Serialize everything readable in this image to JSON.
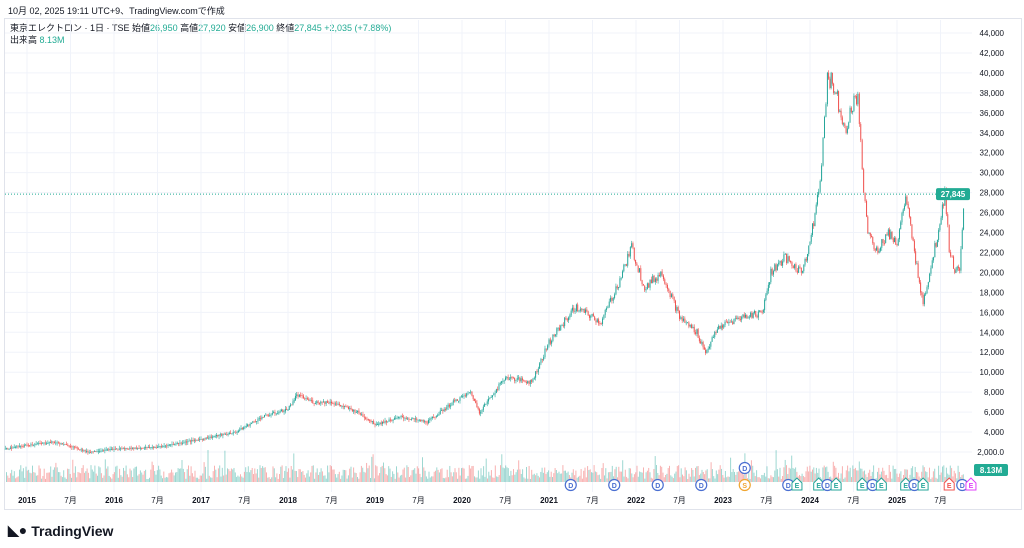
{
  "header": {
    "created": "10月 02, 2025 19:11 UTC+9、TradingView.comで作成"
  },
  "legend": {
    "symbol": "東京エレクトロン · 1日 · TSE",
    "open_label": "始値",
    "open": "26,950",
    "high_label": "高値",
    "high": "27,920",
    "low_label": "安値",
    "low": "26,900",
    "close_label": "終値",
    "close": "27,845",
    "change": "+2,035 (+7.88%)",
    "volume_label": "出来高",
    "volume": "8.13M"
  },
  "brand": {
    "name": "TradingView"
  },
  "colors": {
    "up": "#26a69a",
    "down": "#ef5350",
    "last": "#22ab94",
    "dividend": "#4a6fd1",
    "earnings": "#26a69a",
    "split": "#f0a530"
  },
  "chart_data": {
    "type": "line",
    "title": "東京エレクトロン · 1日 · TSE",
    "ylim": [
      0,
      45000
    ],
    "y_ticks": [
      "44,000",
      "42,000",
      "40,000",
      "38,000",
      "36,000",
      "34,000",
      "32,000",
      "30,000",
      "28,000",
      "26,000",
      "24,000",
      "22,000",
      "20,000",
      "18,000",
      "16,000",
      "14,000",
      "12,000",
      "10,000",
      "8,000",
      "6,000",
      "4,000",
      "2,000.0"
    ],
    "y_tick_values": [
      44000,
      42000,
      40000,
      38000,
      36000,
      34000,
      32000,
      30000,
      28000,
      26000,
      24000,
      22000,
      20000,
      18000,
      16000,
      14000,
      12000,
      10000,
      8000,
      6000,
      4000,
      2000
    ],
    "x_ticks": [
      {
        "t": 2015,
        "label": "2015"
      },
      {
        "t": 2015.5,
        "label": "7月"
      },
      {
        "t": 2016,
        "label": "2016"
      },
      {
        "t": 2016.5,
        "label": "7月"
      },
      {
        "t": 2017,
        "label": "2017"
      },
      {
        "t": 2017.5,
        "label": "7月"
      },
      {
        "t": 2018,
        "label": "2018"
      },
      {
        "t": 2018.5,
        "label": "7月"
      },
      {
        "t": 2019,
        "label": "2019"
      },
      {
        "t": 2019.5,
        "label": "7月"
      },
      {
        "t": 2020,
        "label": "2020"
      },
      {
        "t": 2020.5,
        "label": "7月"
      },
      {
        "t": 2021,
        "label": "2021"
      },
      {
        "t": 2021.5,
        "label": "7月"
      },
      {
        "t": 2022,
        "label": "2022"
      },
      {
        "t": 2022.5,
        "label": "7月"
      },
      {
        "t": 2023,
        "label": "2023"
      },
      {
        "t": 2023.5,
        "label": "7月"
      },
      {
        "t": 2024,
        "label": "2024"
      },
      {
        "t": 2024.5,
        "label": "7月"
      },
      {
        "t": 2025,
        "label": "2025"
      },
      {
        "t": 2025.5,
        "label": "7月"
      }
    ],
    "last_price": 27845,
    "last_price_label": "27,845",
    "last_volume_label": "8.13M",
    "series": [
      {
        "name": "close",
        "points": [
          [
            2014.75,
            2300
          ],
          [
            2015.0,
            2700
          ],
          [
            2015.3,
            3000
          ],
          [
            2015.5,
            2600
          ],
          [
            2015.7,
            2000
          ],
          [
            2016.0,
            2300
          ],
          [
            2016.5,
            2500
          ],
          [
            2017.0,
            3300
          ],
          [
            2017.4,
            4000
          ],
          [
            2017.7,
            5500
          ],
          [
            2018.0,
            6300
          ],
          [
            2018.1,
            7700
          ],
          [
            2018.3,
            7000
          ],
          [
            2018.5,
            7000
          ],
          [
            2018.8,
            6000
          ],
          [
            2019.0,
            4800
          ],
          [
            2019.1,
            5000
          ],
          [
            2019.3,
            5500
          ],
          [
            2019.6,
            5000
          ],
          [
            2019.9,
            7000
          ],
          [
            2020.1,
            8000
          ],
          [
            2020.2,
            6000
          ],
          [
            2020.5,
            9500
          ],
          [
            2020.8,
            9000
          ],
          [
            2021.0,
            13000
          ],
          [
            2021.3,
            16500
          ],
          [
            2021.6,
            15000
          ],
          [
            2021.8,
            19000
          ],
          [
            2021.95,
            22500
          ],
          [
            2022.1,
            18500
          ],
          [
            2022.3,
            20000
          ],
          [
            2022.5,
            15500
          ],
          [
            2022.7,
            14000
          ],
          [
            2022.8,
            12000
          ],
          [
            2022.95,
            14500
          ],
          [
            2023.2,
            15500
          ],
          [
            2023.45,
            16000
          ],
          [
            2023.55,
            20000
          ],
          [
            2023.7,
            21500
          ],
          [
            2023.9,
            20000
          ],
          [
            2024.0,
            23000
          ],
          [
            2024.1,
            28000
          ],
          [
            2024.15,
            33000
          ],
          [
            2024.2,
            40000
          ],
          [
            2024.3,
            38000
          ],
          [
            2024.4,
            34500
          ],
          [
            2024.55,
            38000
          ],
          [
            2024.6,
            30000
          ],
          [
            2024.65,
            25000
          ],
          [
            2024.75,
            22000
          ],
          [
            2024.9,
            24000
          ],
          [
            2025.0,
            23000
          ],
          [
            2025.1,
            27500
          ],
          [
            2025.2,
            22000
          ],
          [
            2025.3,
            17000
          ],
          [
            2025.45,
            23000
          ],
          [
            2025.55,
            28000
          ],
          [
            2025.6,
            22500
          ],
          [
            2025.65,
            20500
          ],
          [
            2025.72,
            20000
          ],
          [
            2025.78,
            27845
          ]
        ]
      }
    ],
    "events": [
      {
        "t": 2021.25,
        "type": "D"
      },
      {
        "t": 2021.75,
        "type": "D"
      },
      {
        "t": 2022.25,
        "type": "D"
      },
      {
        "t": 2022.75,
        "type": "D"
      },
      {
        "t": 2023.25,
        "type": "S"
      },
      {
        "t": 2023.25,
        "type": "D",
        "row": 1
      },
      {
        "t": 2023.75,
        "type": "D"
      },
      {
        "t": 2023.85,
        "type": "E"
      },
      {
        "t": 2024.1,
        "type": "E"
      },
      {
        "t": 2024.2,
        "type": "D"
      },
      {
        "t": 2024.3,
        "type": "E"
      },
      {
        "t": 2024.6,
        "type": "E"
      },
      {
        "t": 2024.72,
        "type": "D"
      },
      {
        "t": 2024.82,
        "type": "E"
      },
      {
        "t": 2025.1,
        "type": "E"
      },
      {
        "t": 2025.2,
        "type": "D"
      },
      {
        "t": 2025.3,
        "type": "E"
      },
      {
        "t": 2025.6,
        "type": "E",
        "color": "down"
      },
      {
        "t": 2025.75,
        "type": "D"
      },
      {
        "t": 2025.85,
        "type": "E",
        "color": "pink"
      }
    ]
  }
}
